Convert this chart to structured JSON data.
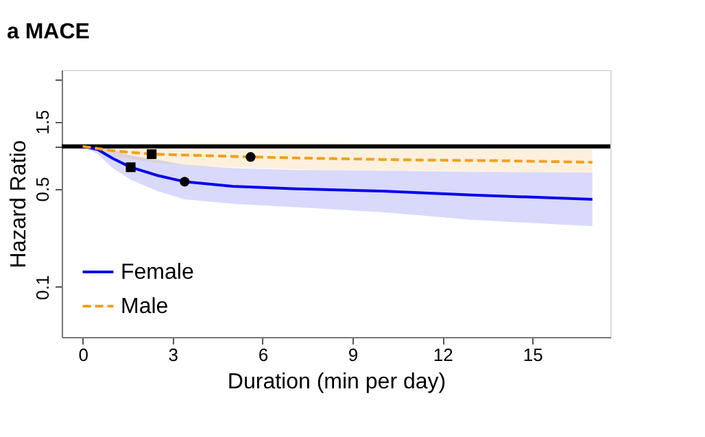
{
  "chart_data": {
    "type": "line",
    "title": "a  MACE",
    "xlabel": "Duration (min per day)",
    "ylabel": "Hazard Ratio",
    "log": "y",
    "xlim": [
      -0.7,
      17.6
    ],
    "xticks": [
      0,
      3,
      6,
      9,
      12,
      15
    ],
    "ylim": [
      0.044,
      3.5
    ],
    "yticks": [
      0.1,
      0.5,
      {
        "value": 1,
        "label": null
      },
      1.5,
      {
        "value": 3,
        "label": null
      }
    ],
    "grid": false,
    "legend": "bottom left",
    "ref_lines": [
      {
        "axis": "y",
        "value": 1,
        "color": "#000000"
      }
    ],
    "series": [
      {
        "name": "Female",
        "color": "#0000ee",
        "line_style": "solid",
        "x": [
          0,
          0.5,
          1,
          1.6,
          2.5,
          3.4,
          5,
          7,
          10,
          13,
          17
        ],
        "values": [
          1.0,
          0.95,
          0.82,
          0.71,
          0.62,
          0.56,
          0.52,
          0.5,
          0.48,
          0.45,
          0.42
        ],
        "lower": [
          1.0,
          0.88,
          0.7,
          0.58,
          0.48,
          0.42,
          0.39,
          0.37,
          0.34,
          0.3,
          0.27
        ],
        "upper": [
          1.0,
          1.02,
          0.95,
          0.86,
          0.8,
          0.74,
          0.7,
          0.68,
          0.67,
          0.66,
          0.65
        ]
      },
      {
        "name": "Male",
        "color": "#f0a020",
        "line_style": "dashed",
        "x": [
          0,
          1,
          2.3,
          4,
          5.6,
          8,
          11,
          14,
          17
        ],
        "values": [
          1.0,
          0.93,
          0.88,
          0.86,
          0.84,
          0.82,
          0.8,
          0.79,
          0.77
        ],
        "lower": [
          1.0,
          0.85,
          0.77,
          0.72,
          0.7,
          0.68,
          0.67,
          0.66,
          0.65
        ],
        "upper": [
          1.0,
          1.02,
          1.04,
          1.05,
          1.05,
          1.05,
          1.04,
          1.03,
          1.02
        ]
      },
      {
        "type": "scatter",
        "marker": "square",
        "color": "#000000",
        "x": [
          1.6,
          2.3
        ],
        "values": [
          0.71,
          0.88
        ]
      },
      {
        "type": "scatter",
        "marker": "circle",
        "color": "#000000",
        "x": [
          3.4,
          5.6
        ],
        "values": [
          0.56,
          0.84
        ]
      }
    ]
  }
}
